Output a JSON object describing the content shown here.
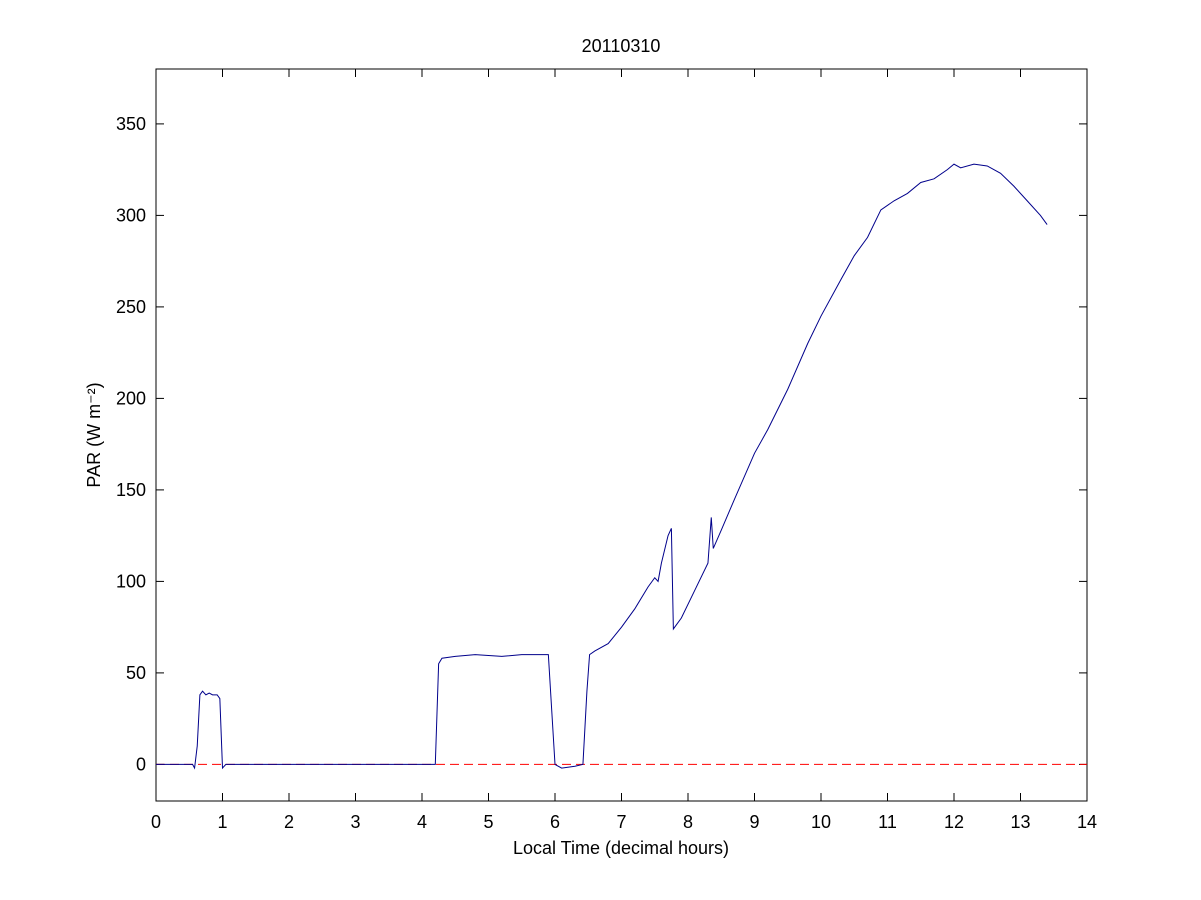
{
  "chart_data": {
    "type": "line",
    "title": "20110310",
    "xlabel": "Local Time (decimal hours)",
    "ylabel": "PAR (W m⁻²)",
    "xlim": [
      0,
      14
    ],
    "xticks": [
      0,
      1,
      2,
      3,
      4,
      5,
      6,
      7,
      8,
      9,
      10,
      11,
      12,
      13,
      14
    ],
    "ylim": [
      -20,
      380
    ],
    "yticks": [
      0,
      50,
      100,
      150,
      200,
      250,
      300,
      350
    ],
    "x": [
      0,
      0.55,
      0.58,
      0.62,
      0.66,
      0.7,
      0.75,
      0.8,
      0.85,
      0.92,
      0.96,
      1.0,
      1.05,
      4.2,
      4.25,
      4.3,
      4.5,
      4.8,
      5.2,
      5.5,
      5.9,
      5.95,
      6.0,
      6.1,
      6.3,
      6.42,
      6.48,
      6.52,
      6.6,
      6.8,
      7.0,
      7.2,
      7.4,
      7.5,
      7.55,
      7.6,
      7.7,
      7.75,
      7.78,
      7.9,
      8.1,
      8.3,
      8.35,
      8.38,
      8.5,
      8.7,
      9.0,
      9.2,
      9.5,
      9.8,
      10.0,
      10.3,
      10.5,
      10.7,
      10.9,
      11.1,
      11.3,
      11.5,
      11.7,
      11.9,
      12.0,
      12.1,
      12.3,
      12.5,
      12.7,
      12.9,
      13.1,
      13.3,
      13.4
    ],
    "series": [
      {
        "color": "#00008b",
        "values": [
          0,
          0,
          -2,
          10,
          38,
          40,
          38,
          39,
          38,
          38,
          36,
          -2,
          0,
          0,
          55,
          58,
          59,
          60,
          59,
          60,
          60,
          30,
          0,
          -2,
          -1,
          0,
          40,
          60,
          62,
          66,
          75,
          85,
          97,
          102,
          100,
          110,
          125,
          129,
          74,
          80,
          95,
          110,
          135,
          118,
          128,
          145,
          170,
          183,
          205,
          230,
          245,
          265,
          278,
          288,
          303,
          308,
          312,
          318,
          320,
          325,
          328,
          326,
          328,
          327,
          323,
          316,
          308,
          300,
          295
        ]
      }
    ],
    "hline": {
      "value": 0,
      "color": "#ff0000",
      "style": "dashed"
    }
  }
}
